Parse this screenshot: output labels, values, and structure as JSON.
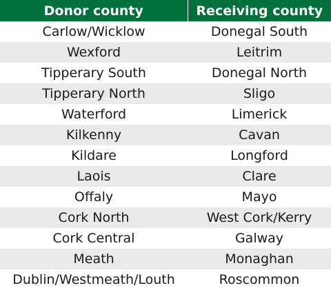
{
  "table": {
    "headers": [
      "Donor county",
      "Receiving county"
    ],
    "rows": [
      [
        "Carlow/Wicklow",
        "Donegal South"
      ],
      [
        "Wexford",
        "Leitrim"
      ],
      [
        "Tipperary South",
        "Donegal North"
      ],
      [
        "Tipperary North",
        "Sligo"
      ],
      [
        "Waterford",
        "Limerick"
      ],
      [
        "Kilkenny",
        "Cavan"
      ],
      [
        "Kildare",
        "Longford"
      ],
      [
        "Laois",
        "Clare"
      ],
      [
        "Offaly",
        "Mayo"
      ],
      [
        "Cork North",
        "West Cork/Kerry"
      ],
      [
        "Cork Central",
        "Galway"
      ],
      [
        "Meath",
        "Monaghan"
      ],
      [
        "Dublin/Westmeath/Louth",
        "Roscommon"
      ]
    ]
  },
  "colors": {
    "header_background": "#00703c",
    "header_text": "#ffffff",
    "stripe": "#eaeaea"
  }
}
